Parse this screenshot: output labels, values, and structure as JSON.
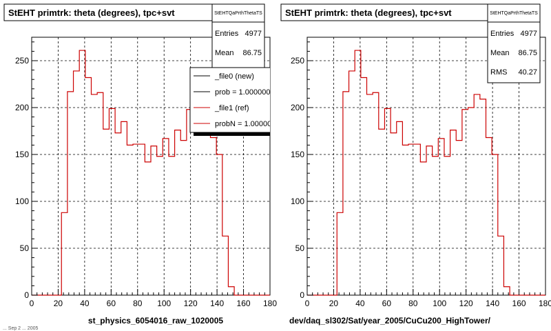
{
  "footer_timestamp": "... Sep 2 ... 2005",
  "chart_data": [
    {
      "type": "histogram",
      "title": "StEHT primtrk: theta (degrees), tpc+svt",
      "xlabel": "st_physics_6054016_raw_1020005",
      "xlim": [
        0,
        180
      ],
      "ylim": [
        0,
        275
      ],
      "xticks": [
        "0",
        "20",
        "40",
        "60",
        "80",
        "100",
        "120",
        "140",
        "160",
        "180"
      ],
      "yticks": [
        "0",
        "50",
        "100",
        "150",
        "200",
        "250"
      ],
      "grid": true,
      "stats": {
        "name": "StEHTQaPrthThetaTS",
        "entries_label": "Entries",
        "entries": "4977",
        "mean_label": "Mean",
        "mean": "86.75"
      },
      "legend": {
        "position": "top-right",
        "entries": [
          {
            "label": "_file0 (new)",
            "color": "#000000"
          },
          {
            "label": "prob = 1.000000",
            "color": "#000000"
          },
          {
            "label": "_file1 (ref)",
            "color": "#cc0000"
          },
          {
            "label": "probN = 1.000000",
            "color": "#cc0000"
          }
        ]
      },
      "bin_width": 4.5,
      "x_start": 0,
      "values": [
        0,
        0,
        0,
        0,
        0,
        88,
        217,
        239,
        261,
        232,
        214,
        216,
        177,
        199,
        173,
        185,
        160,
        161,
        161,
        142,
        159,
        148,
        167,
        148,
        176,
        165,
        198,
        200,
        214,
        209,
        168,
        150,
        63,
        9,
        0,
        0,
        0,
        0,
        0,
        0
      ],
      "line_color": "#cc0000"
    },
    {
      "type": "histogram",
      "title": "StEHT primtrk: theta (degrees), tpc+svt",
      "xlabel": "dev/daq_sl302/Sat/year_2005/CuCu200_HighTower/",
      "xlim": [
        0,
        180
      ],
      "ylim": [
        0,
        275
      ],
      "xticks": [
        "0",
        "20",
        "40",
        "60",
        "80",
        "100",
        "120",
        "140",
        "160",
        "180"
      ],
      "yticks": [
        "0",
        "50",
        "100",
        "150",
        "200",
        "250"
      ],
      "grid": true,
      "stats": {
        "name": "StEHTQaPrthThetaTS",
        "entries_label": "Entries",
        "entries": "4977",
        "mean_label": "Mean",
        "mean": "86.75",
        "rms_label": "RMS",
        "rms": "40.27"
      },
      "bin_width": 4.5,
      "x_start": 0,
      "values": [
        0,
        0,
        0,
        0,
        0,
        88,
        217,
        239,
        261,
        232,
        214,
        216,
        177,
        199,
        173,
        185,
        160,
        161,
        161,
        142,
        159,
        148,
        167,
        148,
        176,
        165,
        198,
        200,
        214,
        209,
        168,
        150,
        63,
        9,
        0,
        0,
        0,
        0,
        0,
        0
      ],
      "line_color": "#cc0000"
    }
  ]
}
